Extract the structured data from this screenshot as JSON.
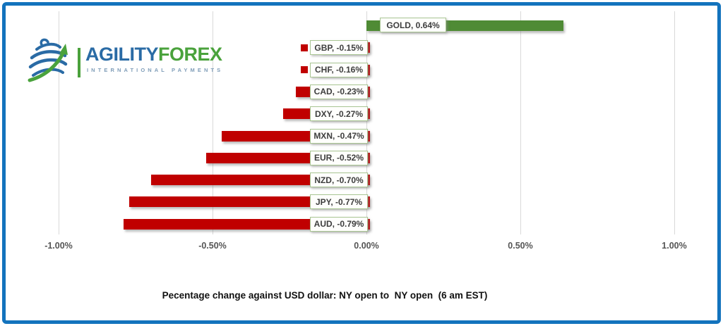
{
  "frame": {
    "border_color": "#1373bd"
  },
  "logo": {
    "icon": "globe-swoosh-arrow-icon",
    "brand_primary": "AGILITY",
    "brand_secondary": "FOREX",
    "tagline": "INTERNATIONAL PAYMENTS",
    "colors": {
      "blue": "#2a6ba5",
      "green": "#4aa23c",
      "tagline_gray": "#7f9db8"
    }
  },
  "chart_data": {
    "type": "bar",
    "orientation": "horizontal",
    "title": "Pecentage change against USD dollar: NY open to  NY open  (6 am EST)",
    "categories": [
      "GOLD",
      "GBP",
      "CHF",
      "CAD",
      "DXY",
      "MXN",
      "EUR",
      "NZD",
      "JPY",
      "AUD"
    ],
    "values": [
      0.64,
      -0.15,
      -0.16,
      -0.23,
      -0.27,
      -0.47,
      -0.52,
      -0.7,
      -0.77,
      -0.79
    ],
    "data_labels": [
      "GOLD, 0.64%",
      "GBP, -0.15%",
      "CHF, -0.16%",
      "CAD, -0.23%",
      "DXY, -0.27%",
      "MXN, -0.47%",
      "EUR, -0.52%",
      "NZD, -0.70%",
      "JPY, -0.77%",
      "AUD, -0.79%"
    ],
    "x_ticks": [
      -1,
      -0.5,
      0,
      0.5,
      1
    ],
    "x_tick_labels": [
      "-1.00%",
      "-0.50%",
      "0.00%",
      "0.50%",
      "1.00%"
    ],
    "xlim": [
      -1,
      1
    ],
    "grid": "vertical",
    "legend": "none",
    "colors": {
      "positive": "#4f8b35",
      "negative": "#c00000",
      "label_box_border": "#a9c693",
      "label_box_fill": "#fefefc",
      "gridline": "#d9d9d9",
      "tick_text": "#555555",
      "title_text": "#111111"
    }
  }
}
